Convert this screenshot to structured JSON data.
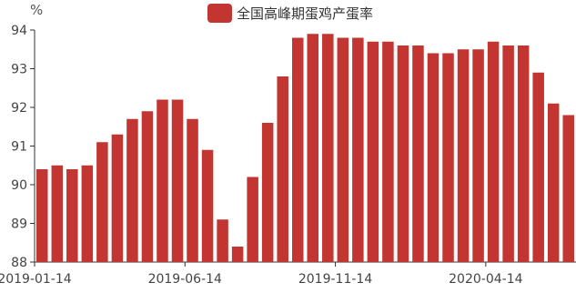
{
  "chart_data": {
    "type": "bar",
    "title": "",
    "xlabel": "",
    "ylabel": "%",
    "ylim": [
      88,
      94
    ],
    "yticks": [
      88,
      89,
      90,
      91,
      92,
      93,
      94
    ],
    "grid": false,
    "legend_position": "top-center",
    "color": "#c23531",
    "series": [
      {
        "name": "全国高峰期蛋鸡产蛋率",
        "values": [
          90.4,
          90.5,
          90.4,
          90.5,
          91.1,
          91.3,
          91.7,
          91.9,
          92.2,
          92.2,
          91.7,
          90.9,
          89.1,
          88.4,
          90.2,
          91.6,
          92.8,
          93.8,
          93.9,
          93.9,
          93.8,
          93.8,
          93.7,
          93.7,
          93.6,
          93.6,
          93.4,
          93.4,
          93.5,
          93.5,
          93.7,
          93.6,
          93.6,
          92.9,
          92.1,
          91.8
        ]
      }
    ],
    "xtick_labels": [
      {
        "index": 0,
        "label": "2019-01-14"
      },
      {
        "index": 10,
        "label": "2019-06-14"
      },
      {
        "index": 20,
        "label": "2019-11-14"
      },
      {
        "index": 30,
        "label": "2020-04-14"
      }
    ]
  }
}
